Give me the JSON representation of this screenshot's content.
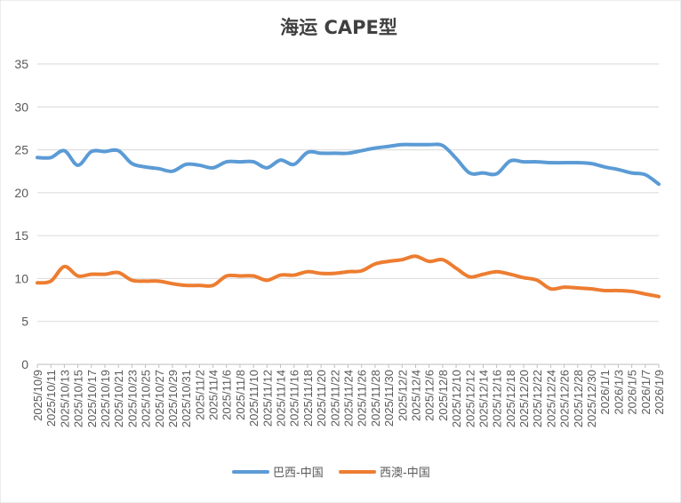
{
  "chart_data": {
    "type": "line",
    "title": "海运 CAPE型",
    "ylim": [
      0,
      35
    ],
    "ytick_step": 5,
    "grid": true,
    "legend_position": "bottom",
    "x": [
      "2025/10/9",
      "2025/10/11",
      "2025/10/13",
      "2025/10/15",
      "2025/10/17",
      "2025/10/19",
      "2025/10/21",
      "2025/10/23",
      "2025/10/25",
      "2025/10/27",
      "2025/10/29",
      "2025/10/31",
      "2025/11/2",
      "2025/11/4",
      "2025/11/6",
      "2025/11/8",
      "2025/11/10",
      "2025/11/12",
      "2025/11/14",
      "2025/11/16",
      "2025/11/18",
      "2025/11/20",
      "2025/11/22",
      "2025/11/24",
      "2025/11/26",
      "2025/11/28",
      "2025/11/30",
      "2025/12/2",
      "2025/12/4",
      "2025/12/6",
      "2025/12/8",
      "2025/12/10",
      "2025/12/12",
      "2025/12/14",
      "2025/12/16",
      "2025/12/18",
      "2025/12/20",
      "2025/12/22",
      "2025/12/24",
      "2025/12/26",
      "2025/12/28",
      "2025/12/30",
      "2026/1/1",
      "2026/1/3",
      "2026/1/5",
      "2026/1/7",
      "2026/1/9"
    ],
    "series": [
      {
        "name": "巴西-中国",
        "color": "#5b9bd5",
        "values": [
          24.1,
          24.1,
          24.9,
          23.2,
          24.8,
          24.8,
          24.9,
          23.4,
          23.0,
          22.8,
          22.5,
          23.3,
          23.2,
          22.9,
          23.6,
          23.6,
          23.6,
          22.9,
          23.8,
          23.3,
          24.7,
          24.6,
          24.6,
          24.6,
          24.9,
          25.2,
          25.4,
          25.6,
          25.6,
          25.6,
          25.5,
          24.0,
          22.3,
          22.3,
          22.2,
          23.7,
          23.6,
          23.6,
          23.5,
          23.5,
          23.5,
          23.4,
          23.0,
          22.7,
          22.3,
          22.1,
          21.0
        ]
      },
      {
        "name": "西澳-中国",
        "color": "#ed7d31",
        "values": [
          9.5,
          9.7,
          11.4,
          10.3,
          10.5,
          10.5,
          10.7,
          9.8,
          9.7,
          9.7,
          9.4,
          9.2,
          9.2,
          9.2,
          10.3,
          10.3,
          10.3,
          9.8,
          10.4,
          10.4,
          10.8,
          10.6,
          10.6,
          10.8,
          10.9,
          11.7,
          12.0,
          12.2,
          12.6,
          12.0,
          12.2,
          11.2,
          10.2,
          10.5,
          10.8,
          10.5,
          10.1,
          9.8,
          8.8,
          9.0,
          8.9,
          8.8,
          8.6,
          8.6,
          8.5,
          8.2,
          7.9
        ]
      }
    ]
  }
}
